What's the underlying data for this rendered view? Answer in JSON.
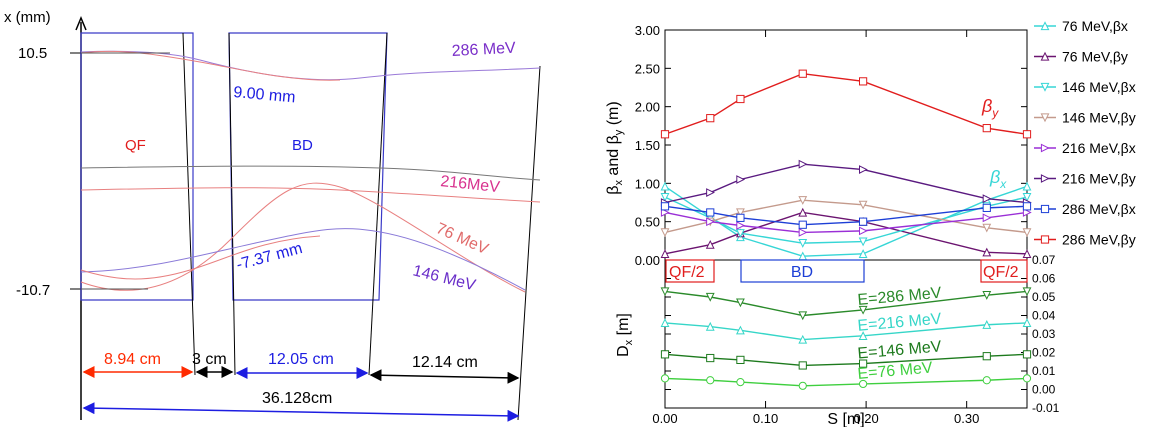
{
  "chart_data": [
    {
      "type": "diagram",
      "ylabel": "x (mm)",
      "y_top_label": "10.5",
      "y_bottom_label": "-10.7",
      "elements": [
        {
          "label": "QF",
          "color": "#e11d1d"
        },
        {
          "label": "BD",
          "color": "#1d1de1"
        }
      ],
      "curve_labels": [
        {
          "text": "286 MeV",
          "color": "#7a2fc9"
        },
        {
          "text": "216MeV",
          "color": "#d8338f"
        },
        {
          "text": "76 MeV",
          "color": "#e06a6a"
        },
        {
          "text": "146 MeV",
          "color": "#6a2fc9"
        }
      ],
      "annotations": [
        {
          "text": "9.00  mm",
          "color": "#1d1de1"
        },
        {
          "text": "-7.37 mm",
          "color": "#1d1de1"
        }
      ],
      "dimensions": [
        {
          "text": "8.94 cm",
          "color": "#ff2a00"
        },
        {
          "text": "3 cm",
          "color": "#000000"
        },
        {
          "text": "12.05 cm",
          "color": "#1d1de1"
        },
        {
          "text": "12.14 cm",
          "color": "#000000"
        },
        {
          "text": "36.128cm",
          "color": "#000000"
        }
      ]
    },
    {
      "type": "line",
      "panel": "top",
      "xlabel": "S [m]",
      "ylabel": "βx and βy (m)",
      "xlim": [
        0,
        0.36
      ],
      "ylim": [
        0,
        3
      ],
      "x_ticks": [
        "0.00",
        "0.10",
        "0.20",
        "0.30"
      ],
      "y_ticks": [
        "0.00",
        "0.50",
        "1.00",
        "1.50",
        "2.00",
        "2.50",
        "3.00"
      ],
      "x": [
        0,
        0.045,
        0.075,
        0.137,
        0.197,
        0.32,
        0.36
      ],
      "series": [
        {
          "name": "76 MeV,βx",
          "color": "#36d6d6",
          "marker": "tri-up",
          "values": [
            0.96,
            0.56,
            0.3,
            0.05,
            0.08,
            0.78,
            0.96
          ]
        },
        {
          "name": "76 MeV,βy",
          "color": "#6b1470",
          "marker": "tri-up",
          "values": [
            0.08,
            0.2,
            0.35,
            0.62,
            0.5,
            0.1,
            0.08
          ]
        },
        {
          "name": "146 MeV,βx",
          "color": "#36d6d6",
          "marker": "tri-down",
          "values": [
            0.82,
            0.55,
            0.35,
            0.22,
            0.24,
            0.7,
            0.82
          ]
        },
        {
          "name": "146 MeV,βy",
          "color": "#c49a8c",
          "marker": "tri-down",
          "values": [
            0.36,
            0.5,
            0.62,
            0.78,
            0.72,
            0.42,
            0.36
          ]
        },
        {
          "name": "216 MeV,βx",
          "color": "#9a2fd6",
          "marker": "tri-right",
          "values": [
            0.62,
            0.5,
            0.45,
            0.36,
            0.38,
            0.55,
            0.62
          ]
        },
        {
          "name": "216 MeV,βy",
          "color": "#5a1a80",
          "marker": "tri-right",
          "values": [
            0.75,
            0.88,
            1.05,
            1.25,
            1.18,
            0.8,
            0.75
          ]
        },
        {
          "name": "286 MeV,βx",
          "color": "#1d3fd6",
          "marker": "square",
          "values": [
            0.7,
            0.62,
            0.55,
            0.46,
            0.5,
            0.68,
            0.7
          ]
        },
        {
          "name": "286 MeV,βy",
          "color": "#e11d1d",
          "marker": "square",
          "values": [
            1.64,
            1.85,
            2.1,
            2.43,
            2.33,
            1.72,
            1.64
          ]
        }
      ],
      "inline_labels": [
        {
          "text": "βy",
          "color": "#e11d1d"
        },
        {
          "text": "βx",
          "color": "#36d6d6"
        }
      ]
    },
    {
      "type": "line",
      "panel": "bottom",
      "xlabel": "S [m]",
      "ylabel": "Dx [m]",
      "xlim": [
        0,
        0.36
      ],
      "ylim": [
        -0.01,
        0.07
      ],
      "y_ticks": [
        "-0.01",
        "0.00",
        "0.01",
        "0.02",
        "0.03",
        "0.04",
        "0.05",
        "0.06",
        "0.07"
      ],
      "x": [
        0,
        0.045,
        0.075,
        0.137,
        0.197,
        0.32,
        0.36
      ],
      "element_labels": [
        {
          "text": "QF/2",
          "color": "#e11d1d"
        },
        {
          "text": "BD",
          "color": "#1d3fd6"
        },
        {
          "text": "QF/2",
          "color": "#e11d1d"
        }
      ],
      "series": [
        {
          "name": "E=286 MeV",
          "color": "#2a8a2a",
          "marker": "tri-down",
          "values": [
            0.053,
            0.05,
            0.047,
            0.04,
            0.043,
            0.051,
            0.053
          ]
        },
        {
          "name": "E=216 MeV",
          "color": "#36d6c8",
          "marker": "tri-up",
          "values": [
            0.036,
            0.034,
            0.032,
            0.027,
            0.029,
            0.035,
            0.036
          ]
        },
        {
          "name": "E=146 MeV",
          "color": "#1d7a1d",
          "marker": "square",
          "values": [
            0.019,
            0.017,
            0.016,
            0.013,
            0.014,
            0.018,
            0.019
          ]
        },
        {
          "name": "E=76 MeV",
          "color": "#3fcf3f",
          "marker": "circle",
          "values": [
            0.006,
            0.005,
            0.004,
            0.002,
            0.003,
            0.005,
            0.006
          ]
        }
      ]
    }
  ]
}
